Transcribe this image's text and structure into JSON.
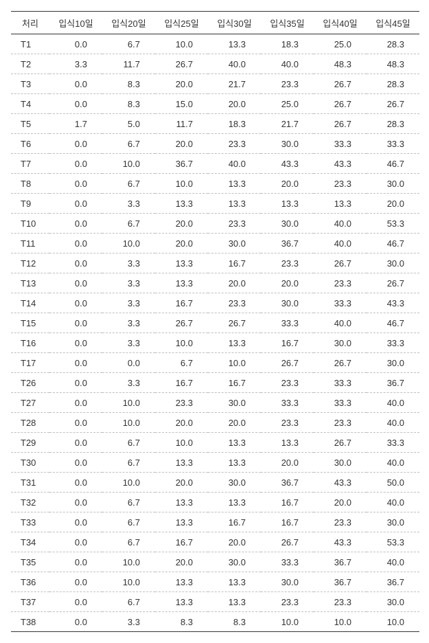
{
  "table": {
    "type": "table",
    "background_color": "#ffffff",
    "text_color": "#333333",
    "header_border_color": "#333333",
    "row_border_color": "#bfbfbf",
    "row_border_style": "dashed",
    "label_fontsize": 13,
    "cell_fontsize": 13,
    "columns": [
      "처리",
      "입식10일",
      "입식20일",
      "입식25일",
      "입식30일",
      "입식35일",
      "입식40일",
      "입식45일"
    ],
    "column_align": [
      "left",
      "right",
      "right",
      "right",
      "right",
      "right",
      "right",
      "right"
    ],
    "rows": [
      [
        "T1",
        "0.0",
        "6.7",
        "10.0",
        "13.3",
        "18.3",
        "25.0",
        "28.3"
      ],
      [
        "T2",
        "3.3",
        "11.7",
        "26.7",
        "40.0",
        "40.0",
        "48.3",
        "48.3"
      ],
      [
        "T3",
        "0.0",
        "8.3",
        "20.0",
        "21.7",
        "23.3",
        "26.7",
        "28.3"
      ],
      [
        "T4",
        "0.0",
        "8.3",
        "15.0",
        "20.0",
        "25.0",
        "26.7",
        "26.7"
      ],
      [
        "T5",
        "1.7",
        "5.0",
        "11.7",
        "18.3",
        "21.7",
        "26.7",
        "28.3"
      ],
      [
        "T6",
        "0.0",
        "6.7",
        "20.0",
        "23.3",
        "30.0",
        "33.3",
        "33.3"
      ],
      [
        "T7",
        "0.0",
        "10.0",
        "36.7",
        "40.0",
        "43.3",
        "43.3",
        "46.7"
      ],
      [
        "T8",
        "0.0",
        "6.7",
        "10.0",
        "13.3",
        "20.0",
        "23.3",
        "30.0"
      ],
      [
        "T9",
        "0.0",
        "3.3",
        "13.3",
        "13.3",
        "13.3",
        "13.3",
        "20.0"
      ],
      [
        "T10",
        "0.0",
        "6.7",
        "20.0",
        "23.3",
        "30.0",
        "40.0",
        "53.3"
      ],
      [
        "T11",
        "0.0",
        "10.0",
        "20.0",
        "30.0",
        "36.7",
        "40.0",
        "46.7"
      ],
      [
        "T12",
        "0.0",
        "3.3",
        "13.3",
        "16.7",
        "23.3",
        "26.7",
        "30.0"
      ],
      [
        "T13",
        "0.0",
        "3.3",
        "13.3",
        "20.0",
        "20.0",
        "23.3",
        "26.7"
      ],
      [
        "T14",
        "0.0",
        "3.3",
        "16.7",
        "23.3",
        "30.0",
        "33.3",
        "43.3"
      ],
      [
        "T15",
        "0.0",
        "3.3",
        "26.7",
        "26.7",
        "33.3",
        "40.0",
        "46.7"
      ],
      [
        "T16",
        "0.0",
        "3.3",
        "10.0",
        "13.3",
        "16.7",
        "30.0",
        "33.3"
      ],
      [
        "T17",
        "0.0",
        "0.0",
        "6.7",
        "10.0",
        "26.7",
        "26.7",
        "30.0"
      ],
      [
        "T26",
        "0.0",
        "3.3",
        "16.7",
        "16.7",
        "23.3",
        "33.3",
        "36.7"
      ],
      [
        "T27",
        "0.0",
        "10.0",
        "23.3",
        "30.0",
        "33.3",
        "33.3",
        "40.0"
      ],
      [
        "T28",
        "0.0",
        "10.0",
        "20.0",
        "20.0",
        "23.3",
        "23.3",
        "40.0"
      ],
      [
        "T29",
        "0.0",
        "6.7",
        "10.0",
        "13.3",
        "13.3",
        "26.7",
        "33.3"
      ],
      [
        "T30",
        "0.0",
        "6.7",
        "13.3",
        "13.3",
        "20.0",
        "30.0",
        "40.0"
      ],
      [
        "T31",
        "0.0",
        "10.0",
        "20.0",
        "30.0",
        "36.7",
        "43.3",
        "50.0"
      ],
      [
        "T32",
        "0.0",
        "6.7",
        "13.3",
        "13.3",
        "16.7",
        "20.0",
        "40.0"
      ],
      [
        "T33",
        "0.0",
        "6.7",
        "13.3",
        "16.7",
        "16.7",
        "23.3",
        "30.0"
      ],
      [
        "T34",
        "0.0",
        "6.7",
        "16.7",
        "20.0",
        "26.7",
        "43.3",
        "53.3"
      ],
      [
        "T35",
        "0.0",
        "10.0",
        "20.0",
        "30.0",
        "33.3",
        "36.7",
        "40.0"
      ],
      [
        "T36",
        "0.0",
        "10.0",
        "13.3",
        "13.3",
        "30.0",
        "36.7",
        "36.7"
      ],
      [
        "T37",
        "0.0",
        "6.7",
        "13.3",
        "13.3",
        "23.3",
        "23.3",
        "30.0"
      ],
      [
        "T38",
        "0.0",
        "3.3",
        "8.3",
        "8.3",
        "10.0",
        "10.0",
        "10.0"
      ]
    ]
  }
}
